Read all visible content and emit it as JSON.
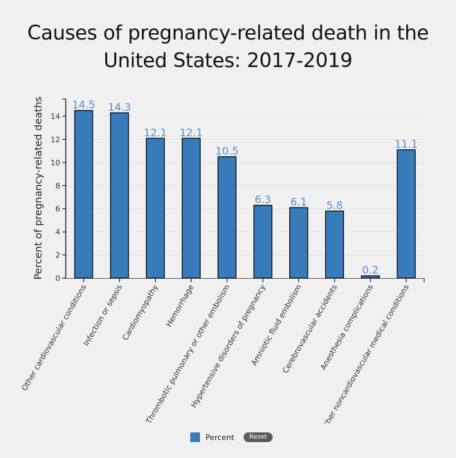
{
  "title_lines": [
    "Causes of pregnancy-related death in the",
    "United States: 2017-2019"
  ],
  "legend": {
    "label": "Percent",
    "reset_label": "Reset"
  },
  "colors": {
    "bar": "#377bba",
    "data_label": "#5a8cc6",
    "grid": "#e2e2e2"
  },
  "chart_data": {
    "type": "bar",
    "title": "Causes of pregnancy-related death in the United States: 2017-2019",
    "xlabel": "",
    "ylabel": "Percent of pregnancy-related deaths",
    "ylim": [
      0,
      15.5
    ],
    "yticks": [
      0,
      2,
      4,
      6,
      8,
      10,
      12,
      14
    ],
    "grid": true,
    "legend_position": "bottom",
    "categories": [
      "Other cardiovascular conditions",
      "Infection or sepsis",
      "Cardiomyopathy",
      "Hemorrhage",
      "Thrombotic pulmonary or other embolism",
      "Hypertensive disorders of pregnancy",
      "Amniotic fluid embolism",
      "Cerebrovascular accidents",
      "Anesthesia complications",
      "Other noncardiovascular medical conditions"
    ],
    "series": [
      {
        "name": "Percent",
        "values": [
          14.5,
          14.3,
          12.1,
          12.1,
          10.5,
          6.3,
          6.1,
          5.8,
          0.2,
          11.1
        ]
      }
    ],
    "data_labels": [
      "14.5",
      "14.3",
      "12.1",
      "12.1",
      "10.5",
      "6.3",
      "6.1",
      "5.8",
      "0.2",
      "11.1"
    ]
  }
}
